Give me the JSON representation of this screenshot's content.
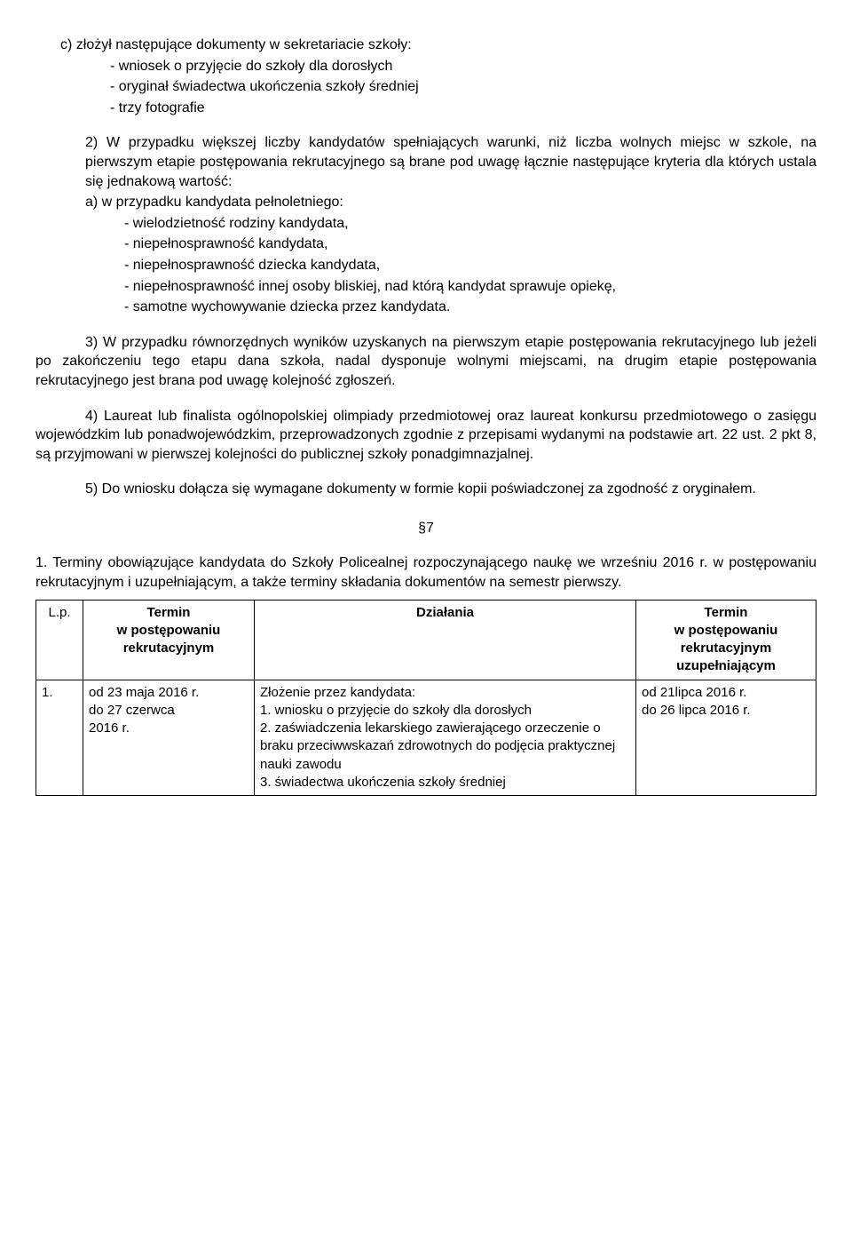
{
  "c_item": "c)  złożył następujące dokumenty w sekretariacie szkoły:",
  "c_sub1": "- wniosek o przyjęcie do szkoły dla dorosłych",
  "c_sub2": "- oryginał świadectwa ukończenia szkoły średniej",
  "c_sub3": "- trzy fotografie",
  "pt2_intro": "2)  W przypadku większej liczby kandydatów spełniających warunki, niż liczba wolnych miejsc w szkole, na pierwszym etapie postępowania rekrutacyjnego są brane pod uwagę łącznie następujące kryteria dla których ustala się jednakową wartość:",
  "a_item": "a)  w przypadku kandydata pełnoletniego:",
  "a_sub1": "- wielodzietność rodziny kandydata,",
  "a_sub2": "- niepełnosprawność kandydata,",
  "a_sub3": "- niepełnosprawność dziecka kandydata,",
  "a_sub4": "- niepełnosprawność innej osoby bliskiej, nad którą kandydat sprawuje opiekę,",
  "a_sub5": "- samotne wychowywanie dziecka przez kandydata.",
  "pt3": "3)  W przypadku równorzędnych wyników uzyskanych na pierwszym etapie postępowania rekrutacyjnego lub jeżeli po zakończeniu tego etapu dana szkoła, nadal dysponuje wolnymi miejscami, na drugim etapie postępowania rekrutacyjnego jest brana pod uwagę kolejność zgłoszeń.",
  "pt4": "4)  Laureat lub finalista ogólnopolskiej olimpiady przedmiotowej oraz laureat konkursu przedmiotowego o zasięgu wojewódzkim lub ponadwojewódzkim, przeprowadzonych zgodnie z przepisami wydanymi na podstawie art. 22 ust. 2 pkt 8, są przyjmowani w pierwszej kolejności do publicznej szkoły ponadgimnazjalnej.",
  "pt5": "5)  Do  wniosku dołącza się wymagane dokumenty w formie kopii poświadczonej za zgodność z oryginałem.",
  "section": "§7",
  "par1": "1.  Terminy obowiązujące kandydata do Szkoły Policealnej rozpoczynającego naukę we wrześniu 2016 r. w postępowaniu rekrutacyjnym i uzupełniającym, a także terminy składania dokumentów na semestr pierwszy.",
  "table": {
    "headers": {
      "lp": "L.p.",
      "t1": "Termin\nw postępowaniu\nrekrutacyjnym",
      "act": "Działania",
      "t2": "Termin\nw postępowaniu\nrekrutacyjnym\nuzupełniającym"
    },
    "row1": {
      "lp": "1.",
      "t1": "od 23 maja 2016 r.\ndo 27 czerwca\n2016 r.",
      "act_l1": "Złożenie przez kandydata:",
      "act_l2": " 1. wniosku o przyjęcie do szkoły dla dorosłych",
      "act_l3": "2.  zaświadczenia lekarskiego zawierającego orzeczenie o braku przeciwwskazań zdrowotnych do podjęcia praktycznej nauki zawodu",
      "act_l4": "3. świadectwa ukończenia szkoły średniej",
      "t2": "od 21lipca 2016 r.\ndo 26 lipca 2016 r."
    }
  }
}
